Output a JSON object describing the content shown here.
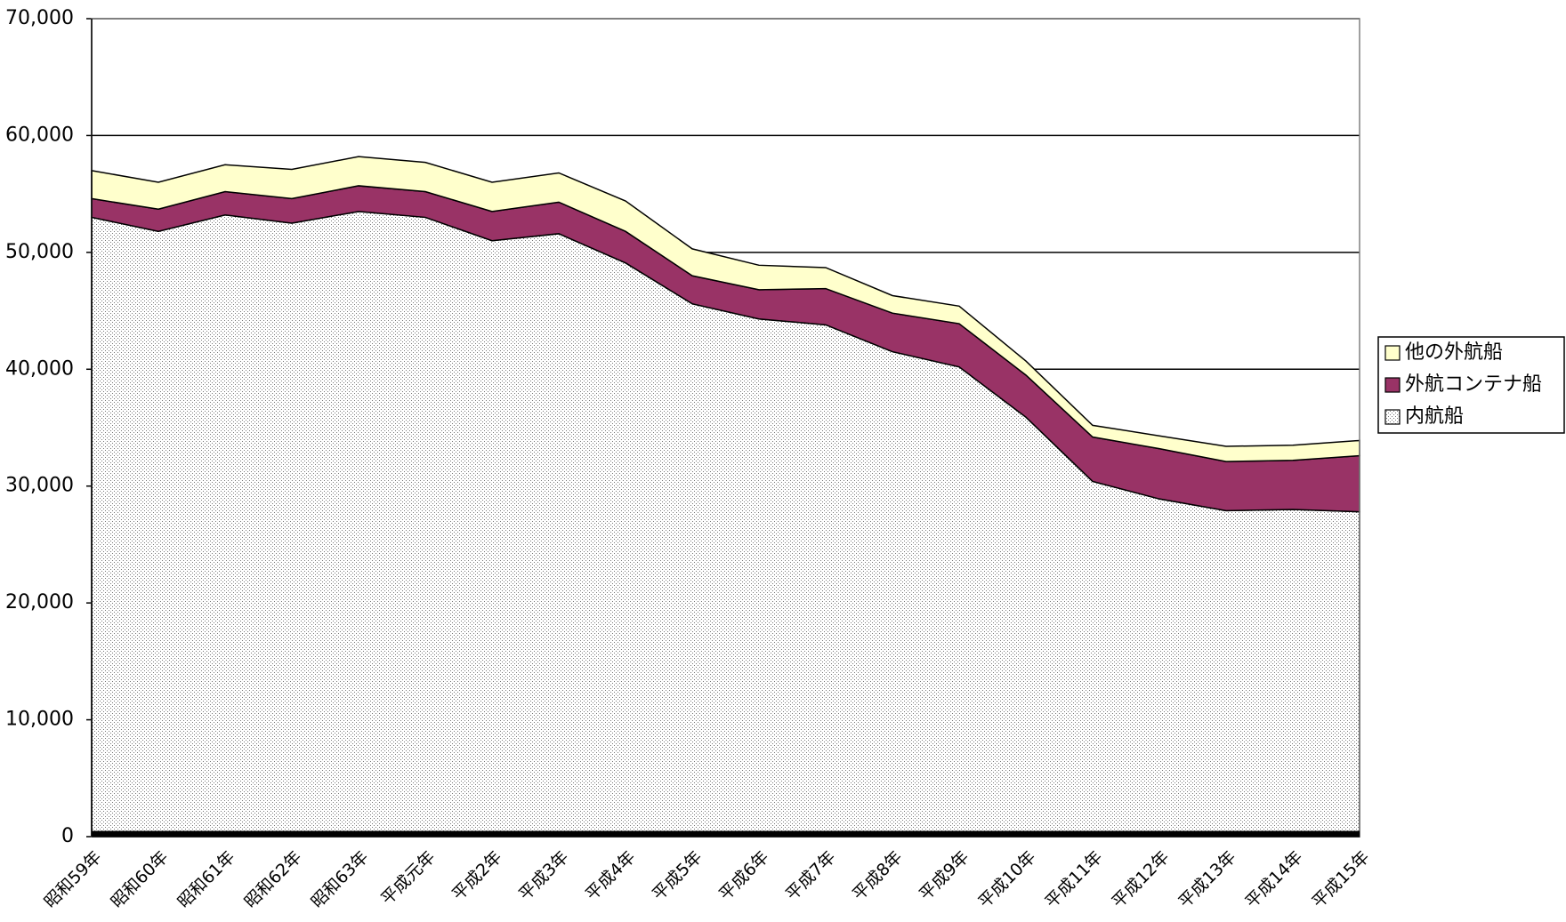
{
  "chart_data": {
    "type": "stacked-area",
    "categories": [
      "昭和59年",
      "昭和60年",
      "昭和61年",
      "昭和62年",
      "昭和63年",
      "平成元年",
      "平成2年",
      "平成3年",
      "平成4年",
      "平成5年",
      "平成6年",
      "平成7年",
      "平成8年",
      "平成9年",
      "平成10年",
      "平成11年",
      "平成12年",
      "平成13年",
      "平成14年",
      "平成15年"
    ],
    "series": [
      {
        "name": "内航船",
        "color": "#ffffff",
        "values": [
          53000,
          51800,
          53200,
          52500,
          53500,
          53000,
          51000,
          51600,
          49100,
          45600,
          44300,
          43800,
          41500,
          40200,
          35900,
          30400,
          28900,
          27900,
          28000,
          27800
        ]
      },
      {
        "name": "外航コンテナ船",
        "color": "#993366",
        "values": [
          1600,
          1900,
          2000,
          2100,
          2200,
          2200,
          2500,
          2700,
          2700,
          2400,
          2500,
          3100,
          3300,
          3700,
          3600,
          3800,
          4300,
          4200,
          4200,
          4800
        ]
      },
      {
        "name": "他の外航船",
        "color": "#ffffcc",
        "values": [
          2400,
          2300,
          2300,
          2500,
          2500,
          2500,
          2500,
          2500,
          2600,
          2300,
          2100,
          1800,
          1500,
          1500,
          1200,
          1000,
          1100,
          1300,
          1300,
          1300
        ]
      }
    ],
    "ylim": [
      0,
      70000
    ],
    "yticks": [
      {
        "value": 0,
        "label": "0"
      },
      {
        "value": 10000,
        "label": "10,000"
      },
      {
        "value": 20000,
        "label": "20,000"
      },
      {
        "value": 30000,
        "label": "30,000"
      },
      {
        "value": 40000,
        "label": "40,000"
      },
      {
        "value": 50000,
        "label": "50,000"
      },
      {
        "value": 60000,
        "label": "60,000"
      },
      {
        "value": 70000,
        "label": "70,000"
      }
    ],
    "grid": true,
    "legend": "right"
  }
}
